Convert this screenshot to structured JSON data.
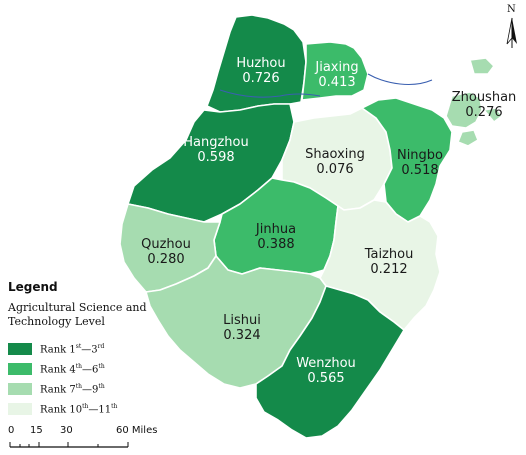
{
  "legend": {
    "title": "Legend",
    "subtitle": "Agricultural Science and Technology Level",
    "classes": [
      {
        "base": "Rank 1",
        "sup1": "st",
        "sep": "—3",
        "sup2": "rd",
        "color": "#148a4a"
      },
      {
        "base": "Rank 4",
        "sup1": "th",
        "sep": "—6",
        "sup2": "th",
        "color": "#3cbb6a"
      },
      {
        "base": "Rank 7",
        "sup1": "th",
        "sep": "—9",
        "sup2": "th",
        "color": "#a6dcb0"
      },
      {
        "base": "Rank 10",
        "sup1": "th",
        "sep": "—11",
        "sup2": "th",
        "color": "#e8f5e6"
      }
    ]
  },
  "regions": [
    {
      "name": "Huzhou",
      "value": "0.726",
      "rank_class": 1
    },
    {
      "name": "Jiaxing",
      "value": "0.413",
      "rank_class": 2
    },
    {
      "name": "Zhoushan",
      "value": "0.276",
      "rank_class": 3
    },
    {
      "name": "Hangzhou",
      "value": "0.598",
      "rank_class": 1
    },
    {
      "name": "Shaoxing",
      "value": "0.076",
      "rank_class": 4
    },
    {
      "name": "Ningbo",
      "value": "0.518",
      "rank_class": 2
    },
    {
      "name": "Jinhua",
      "value": "0.388",
      "rank_class": 2
    },
    {
      "name": "Quzhou",
      "value": "0.280",
      "rank_class": 3
    },
    {
      "name": "Taizhou",
      "value": "0.212",
      "rank_class": 4
    },
    {
      "name": "Lishui",
      "value": "0.324",
      "rank_class": 3
    },
    {
      "name": "Wenzhou",
      "value": "0.565",
      "rank_class": 1
    }
  ],
  "scale_bar": {
    "ticks": [
      "0",
      "15",
      "30",
      "60 Miles"
    ]
  },
  "north_label": "N"
}
